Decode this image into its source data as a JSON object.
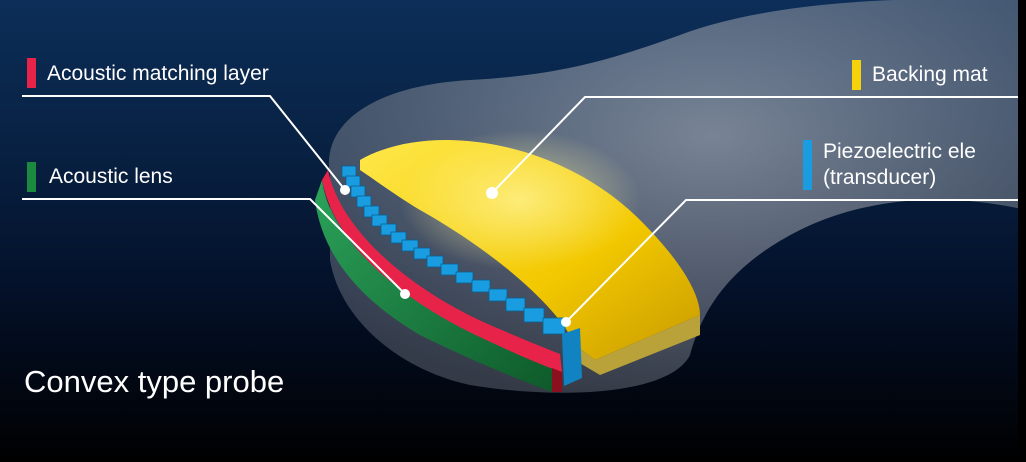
{
  "labels": {
    "matching_layer": "Acoustic matching layer",
    "lens": "Acoustic lens",
    "backing": "Backing mat",
    "piezo_line1": "Piezoelectric ele",
    "piezo_line2": "(transducer)"
  },
  "title": "Convex type probe",
  "colors": {
    "matching_layer": "#e8234a",
    "lens": "#1b8a3e",
    "backing": "#f5d20a",
    "piezo": "#1a9ce0"
  }
}
